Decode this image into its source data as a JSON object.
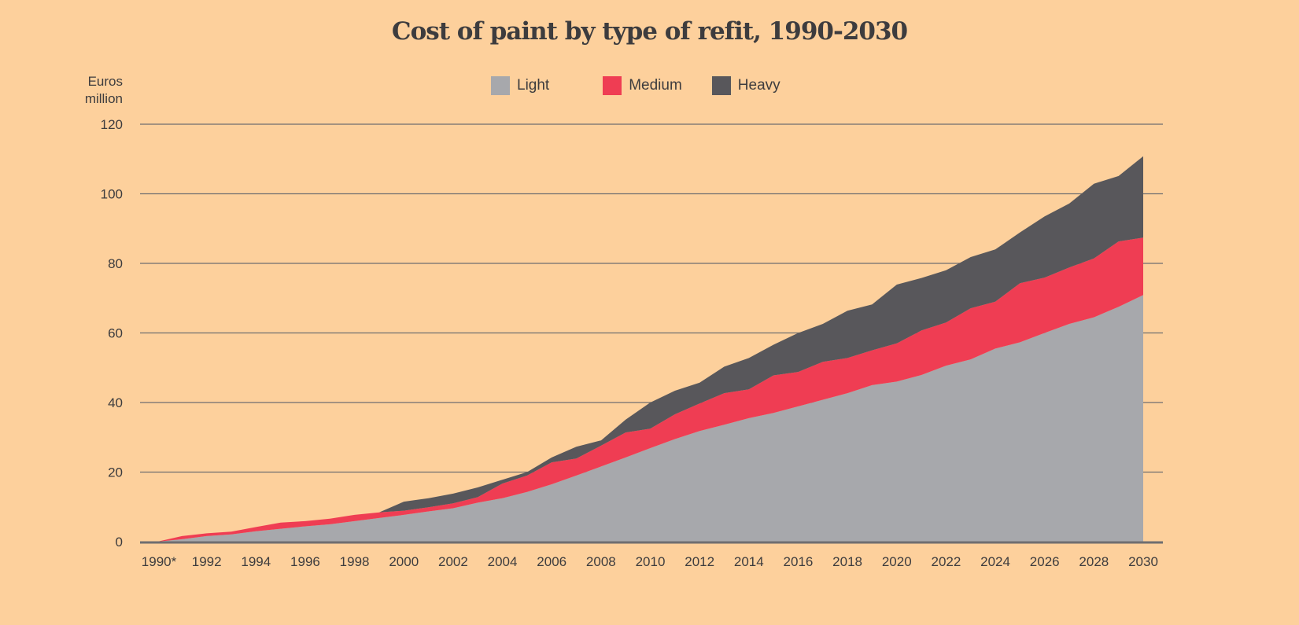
{
  "chart_data": {
    "type": "area",
    "stacked": true,
    "title": "Cost of paint by type of refit, 1990-2030",
    "ylabel": "Euros million",
    "xlabel": "",
    "ylim": [
      0,
      120
    ],
    "yticks": [
      0,
      20,
      40,
      60,
      80,
      100,
      120
    ],
    "xlim": [
      1990,
      2030
    ],
    "xticks": [
      1990,
      1992,
      1994,
      1996,
      1998,
      2000,
      2002,
      2004,
      2006,
      2008,
      2010,
      2012,
      2014,
      2016,
      2018,
      2020,
      2022,
      2024,
      2026,
      2028,
      2030
    ],
    "xtick_labels": [
      "1990*",
      "1992",
      "1994",
      "1996",
      "1998",
      "2000",
      "2002",
      "2004",
      "2006",
      "2008",
      "2010",
      "2012",
      "2014",
      "2016",
      "2018",
      "2020",
      "2022",
      "2024",
      "2026",
      "2028",
      "2030"
    ],
    "grid": true,
    "legend_position": "top-center",
    "x": [
      1990,
      1991,
      1992,
      1993,
      1994,
      1995,
      1996,
      1997,
      1998,
      1999,
      2000,
      2001,
      2002,
      2003,
      2004,
      2005,
      2006,
      2007,
      2008,
      2009,
      2010,
      2011,
      2012,
      2013,
      2014,
      2015,
      2016,
      2017,
      2018,
      2019,
      2020,
      2021,
      2022,
      2023,
      2024,
      2025,
      2026,
      2027,
      2028,
      2029,
      2030
    ],
    "series": [
      {
        "name": "Light",
        "color": "#A7A8AC",
        "values": [
          0,
          0.7,
          1.6,
          2.1,
          3.0,
          3.7,
          4.4,
          5.0,
          5.9,
          6.8,
          7.7,
          8.7,
          9.6,
          11.2,
          12.5,
          14.3,
          16.5,
          19.0,
          21.6,
          24.2,
          26.9,
          29.5,
          31.8,
          33.6,
          35.5,
          37.0,
          38.9,
          40.8,
          42.7,
          45.0,
          46.0,
          47.9,
          50.6,
          52.4,
          55.5,
          57.3,
          60.0,
          62.6,
          64.5,
          67.5,
          70.9
        ]
      },
      {
        "name": "Medium",
        "color": "#EF3D53",
        "values": [
          0,
          0.9,
          0.8,
          0.8,
          1.2,
          1.8,
          1.5,
          1.6,
          1.8,
          1.6,
          1.2,
          1.2,
          1.4,
          1.6,
          4.2,
          4.7,
          6.3,
          4.9,
          6.0,
          7.2,
          5.6,
          7.1,
          7.9,
          9.1,
          8.3,
          10.8,
          9.9,
          10.9,
          10.1,
          10.0,
          11.0,
          12.8,
          12.4,
          14.7,
          13.5,
          17.0,
          15.9,
          16.2,
          16.9,
          18.8,
          16.5
        ]
      },
      {
        "name": "Heavy",
        "color": "#58575B",
        "values": [
          0,
          0,
          0,
          0,
          0,
          0,
          0,
          0,
          0,
          0,
          2.6,
          2.6,
          2.8,
          2.8,
          1.1,
          1.0,
          1.4,
          3.4,
          1.5,
          3.7,
          7.5,
          6.8,
          6.0,
          7.6,
          9.0,
          8.8,
          11.2,
          10.9,
          13.6,
          13.2,
          16.9,
          15.1,
          15.0,
          14.7,
          15.0,
          14.6,
          17.6,
          18.4,
          21.5,
          18.8,
          23.4
        ]
      }
    ]
  },
  "legend": {
    "items": [
      {
        "label": "Light",
        "color": "#A7A8AC"
      },
      {
        "label": "Medium",
        "color": "#EF3D53"
      },
      {
        "label": "Heavy",
        "color": "#58575B"
      }
    ]
  },
  "axis": {
    "y_unit_line1": "Euros",
    "y_unit_line2": "million"
  },
  "colors": {
    "background": "#FDD09C",
    "gridline": "#6f6e70",
    "text": "#3d3c3e"
  }
}
